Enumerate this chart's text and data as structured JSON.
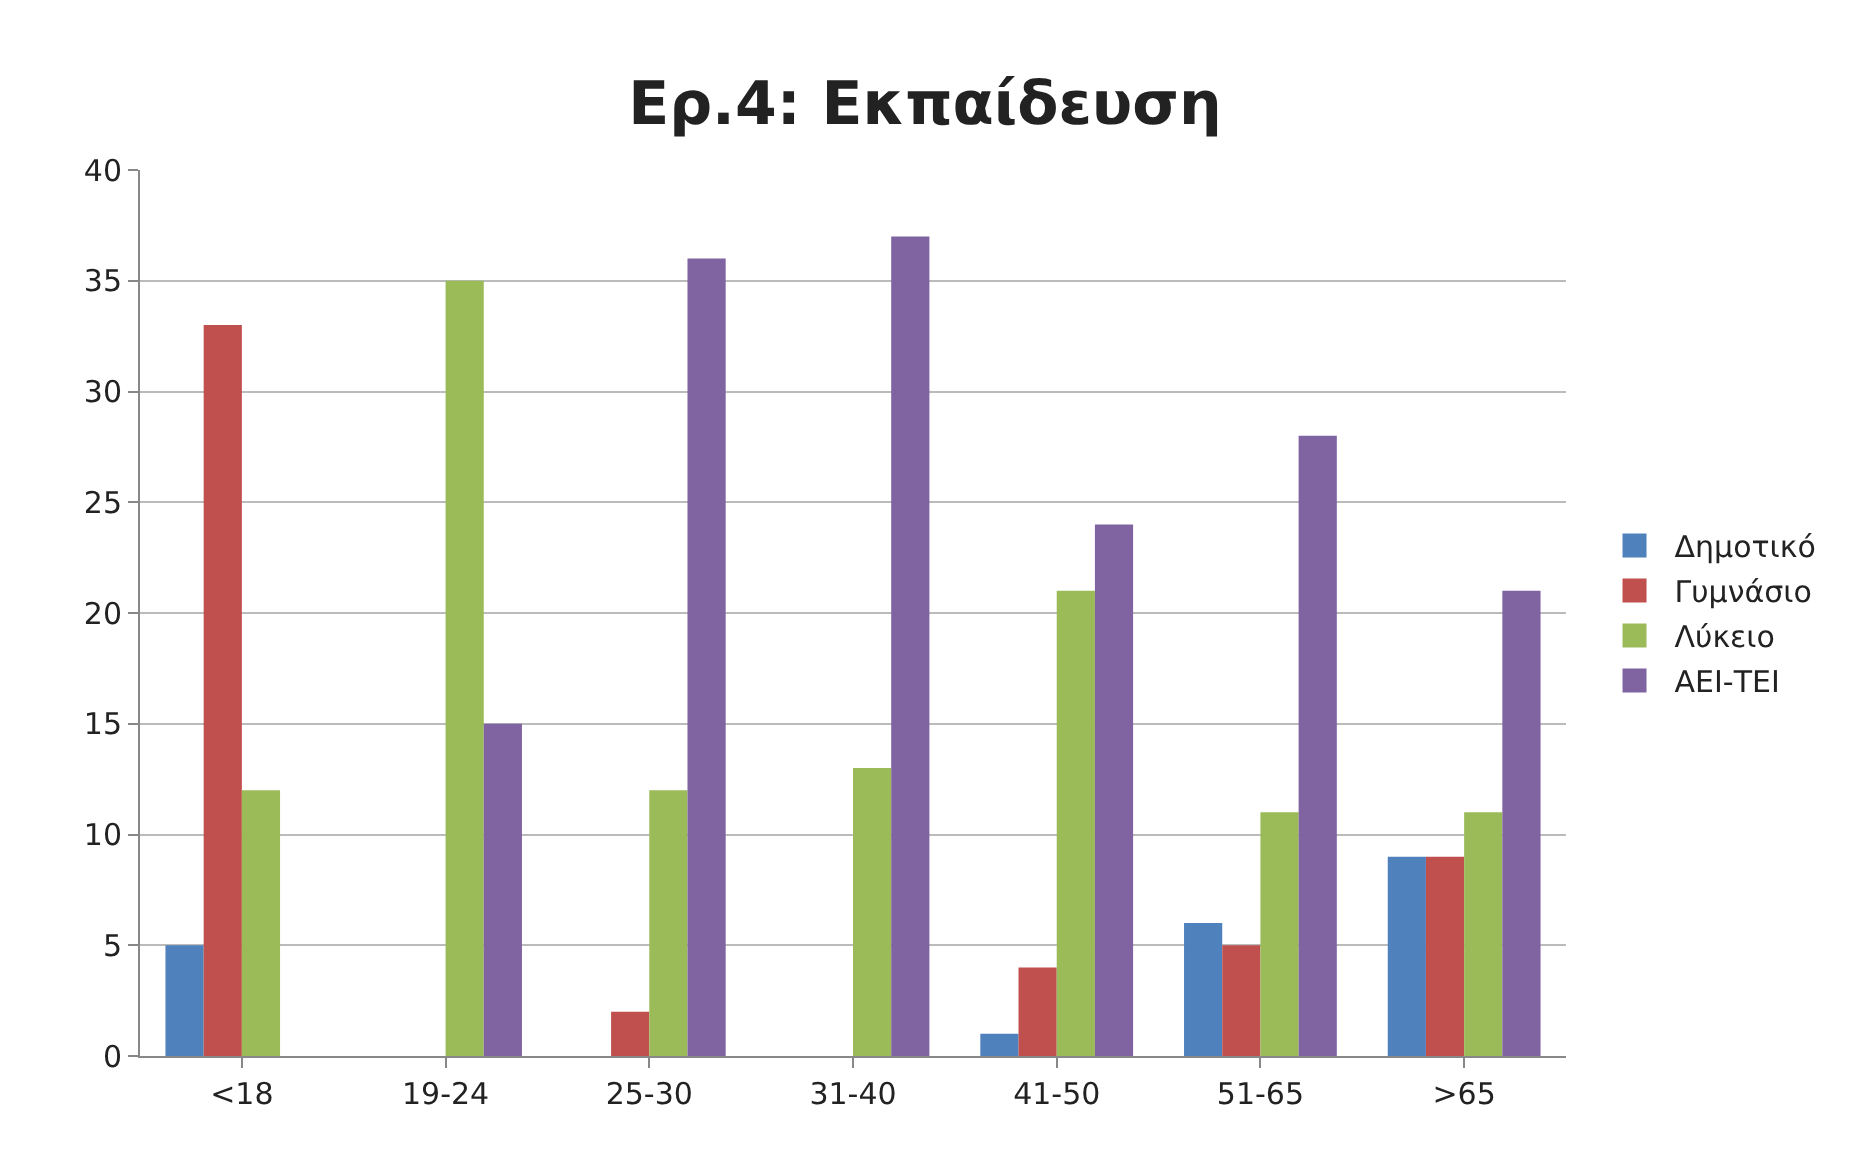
{
  "chart_data": {
    "type": "bar",
    "title": "Ερ.4: Εκπαίδευση",
    "categories": [
      "<18",
      "19-24",
      "25-30",
      "31-40",
      "41-50",
      "51-65",
      ">65"
    ],
    "series": [
      {
        "name": "Δημοτικό",
        "color": "#4f81bd",
        "values": [
          5,
          0,
          0,
          0,
          1,
          6,
          9
        ]
      },
      {
        "name": "Γυμνάσιο",
        "color": "#c0504d",
        "values": [
          33,
          0,
          2,
          0,
          4,
          5,
          9
        ]
      },
      {
        "name": "Λύκειο",
        "color": "#9bbb59",
        "values": [
          12,
          35,
          12,
          13,
          21,
          11,
          11
        ]
      },
      {
        "name": "ΑΕΙ-ΤΕΙ",
        "color": "#8064a2",
        "values": [
          0,
          15,
          36,
          37,
          24,
          28,
          21
        ]
      }
    ],
    "ylim": [
      0,
      40
    ],
    "yticks": [
      0,
      5,
      10,
      15,
      20,
      25,
      30,
      35,
      40
    ],
    "grid": "y",
    "legend": "right"
  }
}
